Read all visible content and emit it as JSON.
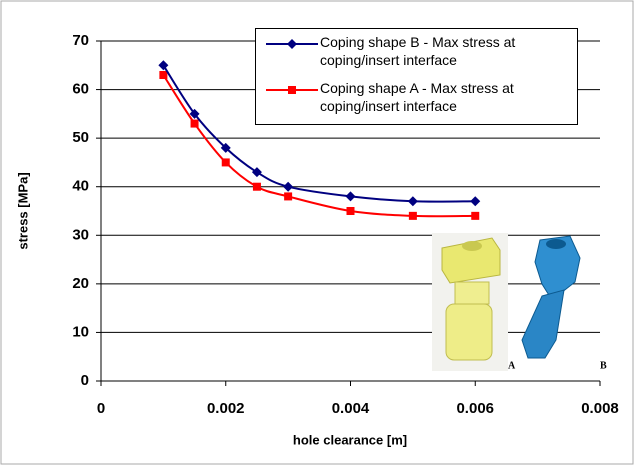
{
  "chart_data": {
    "type": "line",
    "x": [
      0.001,
      0.0015,
      0.002,
      0.0025,
      0.003,
      0.004,
      0.005,
      0.006
    ],
    "series": [
      {
        "name": "Coping shape B - Max stress at coping/insert interface",
        "color": "#000080",
        "marker": "diamond",
        "values": [
          65,
          55,
          48,
          43,
          40,
          38,
          37,
          37
        ]
      },
      {
        "name": "Coping shape A - Max stress at coping/insert interface",
        "color": "#ff0000",
        "marker": "square",
        "values": [
          63,
          53,
          45,
          40,
          38,
          35,
          34,
          34
        ]
      }
    ],
    "xlabel": "hole clearance [m]",
    "ylabel": "stress [MPa]",
    "xlim": [
      0,
      0.008
    ],
    "xticks": [
      0,
      0.002,
      0.004,
      0.006,
      0.008
    ],
    "ylim": [
      0,
      70
    ],
    "yticks": [
      0,
      10,
      20,
      30,
      40,
      50,
      60,
      70
    ],
    "grid": true,
    "legend": "top-right",
    "annotations": [
      "A",
      "B"
    ]
  }
}
